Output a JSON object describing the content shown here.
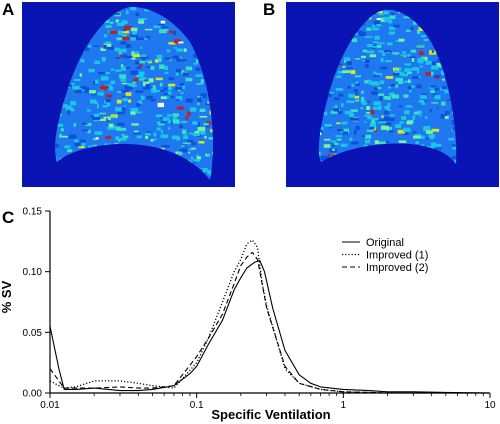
{
  "panels": {
    "a_label": "A",
    "b_label": "B",
    "c_label": "C",
    "colors": {
      "background": "#0a14b4",
      "lung_base": "#1f78f0",
      "texture": [
        "#18c8e6",
        "#36e0c0",
        "#7cf29a",
        "#0e50d8",
        "#d8e820",
        "#c02020",
        "#ffffff"
      ]
    }
  },
  "chart_data": {
    "type": "line",
    "xlabel": "Specific Ventilation",
    "ylabel": "% SV",
    "x_scale": "log",
    "xlim": [
      0.01,
      10
    ],
    "ylim": [
      0,
      0.15
    ],
    "x_ticks": [
      0.01,
      0.1,
      1,
      10
    ],
    "x_tick_labels": [
      "0.01",
      "0.1",
      "1",
      "10"
    ],
    "y_ticks": [
      0,
      0.05,
      0.1,
      0.15
    ],
    "y_tick_labels": [
      "0.00",
      "0.05",
      "0.10",
      "0.15"
    ],
    "legend_position": "top-right",
    "series": [
      {
        "name": "Original",
        "dash": "solid",
        "x": [
          0.01,
          0.0115,
          0.0125,
          0.015,
          0.02,
          0.025,
          0.03,
          0.04,
          0.05,
          0.07,
          0.09,
          0.1,
          0.12,
          0.15,
          0.18,
          0.2,
          0.22,
          0.25,
          0.27,
          0.29,
          0.33,
          0.4,
          0.5,
          0.6,
          0.7,
          1.0,
          1.5,
          2,
          3,
          5,
          10
        ],
        "y": [
          0.055,
          0.02,
          0.003,
          0.003,
          0.004,
          0.003,
          0.002,
          0.002,
          0.003,
          0.006,
          0.016,
          0.022,
          0.04,
          0.06,
          0.085,
          0.095,
          0.103,
          0.108,
          0.109,
          0.1,
          0.07,
          0.035,
          0.015,
          0.008,
          0.005,
          0.003,
          0.002,
          0.001,
          0.001,
          0.0005,
          0
        ]
      },
      {
        "name": "Improved (1)",
        "dash": "dotted",
        "x": [
          0.01,
          0.0115,
          0.0125,
          0.015,
          0.02,
          0.03,
          0.04,
          0.05,
          0.07,
          0.1,
          0.12,
          0.15,
          0.18,
          0.2,
          0.22,
          0.24,
          0.26,
          0.28,
          0.3,
          0.4,
          0.5,
          0.7,
          1.0,
          1.5,
          2,
          3,
          10
        ],
        "y": [
          0.01,
          0.006,
          0.004,
          0.005,
          0.01,
          0.01,
          0.008,
          0.006,
          0.004,
          0.025,
          0.045,
          0.075,
          0.1,
          0.11,
          0.123,
          0.126,
          0.12,
          0.09,
          0.072,
          0.02,
          0.008,
          0.003,
          0.001,
          0.0005,
          0,
          0,
          0
        ]
      },
      {
        "name": "Improved (2)",
        "dash": "dashed",
        "x": [
          0.01,
          0.0115,
          0.0125,
          0.015,
          0.02,
          0.03,
          0.04,
          0.05,
          0.07,
          0.1,
          0.12,
          0.15,
          0.18,
          0.2,
          0.22,
          0.24,
          0.26,
          0.28,
          0.3,
          0.4,
          0.5,
          0.7,
          1.0,
          1.5,
          2,
          3,
          10
        ],
        "y": [
          0.02,
          0.01,
          0.004,
          0.004,
          0.004,
          0.005,
          0.004,
          0.004,
          0.006,
          0.03,
          0.045,
          0.065,
          0.09,
          0.105,
          0.112,
          0.116,
          0.11,
          0.09,
          0.07,
          0.022,
          0.008,
          0.003,
          0.001,
          0.0005,
          0,
          0,
          0
        ]
      }
    ]
  }
}
